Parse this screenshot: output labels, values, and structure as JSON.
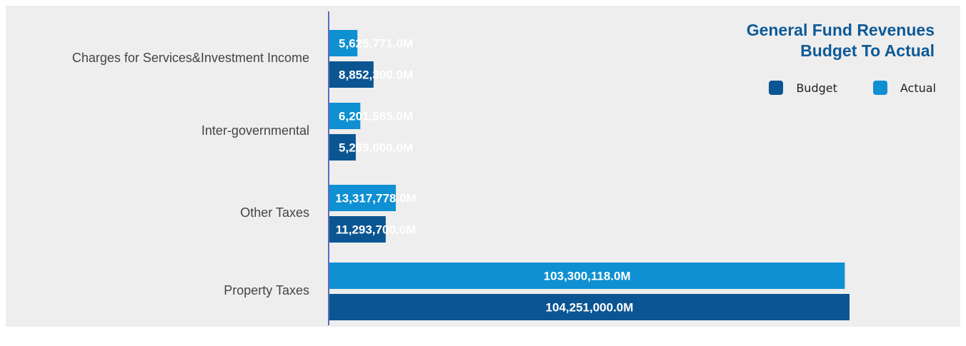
{
  "chart_data": {
    "type": "bar",
    "orientation": "horizontal",
    "title": "General Fund Revenues",
    "subtitle": "Budget To Actual",
    "categories": [
      "Charges for Services&Investment Income",
      "Inter-governmental",
      "Other Taxes",
      "Property Taxes"
    ],
    "series": [
      {
        "name": "Actual",
        "color": "#0e90d2",
        "values": [
          5625771,
          6201585,
          13317778,
          103300118
        ],
        "labels": [
          "5,625,771.0M",
          "6,201,585.0M",
          "13,317,778.0M",
          "103,300,118.0M"
        ]
      },
      {
        "name": "Budget",
        "color": "#0b5592",
        "values": [
          8852300,
          5289000,
          11293700,
          104251000
        ],
        "labels": [
          "8,852,300.0M",
          "5,289,000.0M",
          "11,293,700.0M",
          "104,251,000.0M"
        ]
      }
    ],
    "legend": {
      "position": "top-right",
      "entries": [
        {
          "name": "Budget",
          "color": "#0b5592"
        },
        {
          "name": "Actual",
          "color": "#0e90d2"
        }
      ]
    },
    "xlim": [
      0,
      104251000
    ],
    "grid": false,
    "xlabel": "",
    "ylabel": ""
  }
}
